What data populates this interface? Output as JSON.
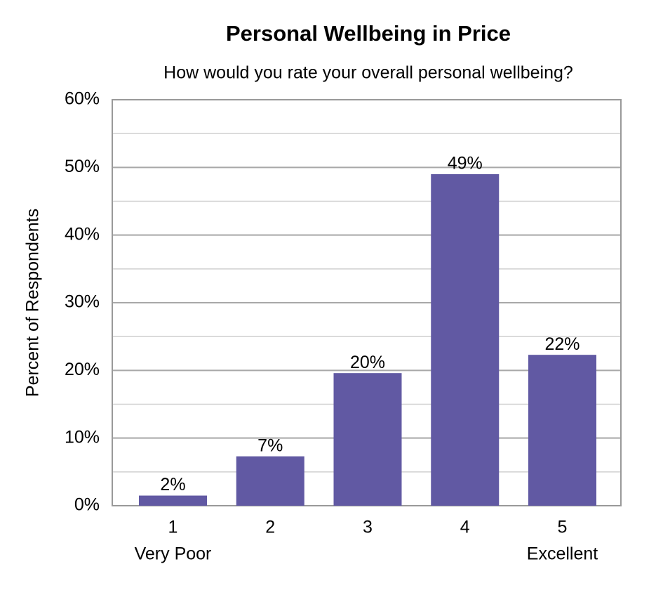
{
  "chart_data": {
    "type": "bar",
    "title": "Personal Wellbeing in Price",
    "subtitle": "How would you rate your overall personal wellbeing?",
    "y_label": "Percent of Respondents",
    "categories": [
      "1",
      "2",
      "3",
      "4",
      "5"
    ],
    "category_sublabels": [
      "Very Poor",
      null,
      null,
      null,
      "Excellent"
    ],
    "values": [
      1.5,
      7.3,
      19.6,
      49.0,
      22.3
    ],
    "value_labels": [
      "2%",
      "7%",
      "20%",
      "49%",
      "22%"
    ],
    "color": "#6159a3",
    "ylim": [
      0,
      60
    ],
    "yticks": [
      {
        "value": 0,
        "label": "0%"
      },
      {
        "value": 10,
        "label": "10%"
      },
      {
        "value": 20,
        "label": "20%"
      },
      {
        "value": 30,
        "label": "30%"
      },
      {
        "value": 40,
        "label": "40%"
      },
      {
        "value": 50,
        "label": "50%"
      },
      {
        "value": 60,
        "label": "60%"
      }
    ],
    "minor_yticks": [
      5,
      15,
      25,
      35,
      45,
      55
    ],
    "grid": true
  }
}
